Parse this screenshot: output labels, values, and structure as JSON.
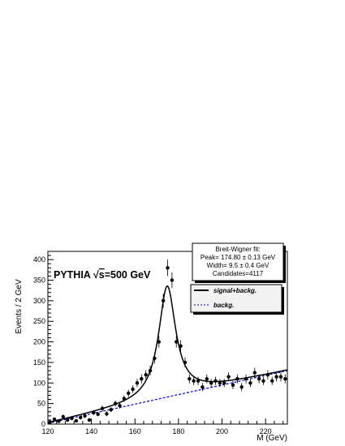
{
  "chart_data": {
    "type": "scatter",
    "xlabel": "M (GeV)",
    "ylabel": "Events / 2 GeV",
    "xlim": [
      120,
      230
    ],
    "ylim": [
      0,
      420
    ],
    "x_ticks": [
      120,
      140,
      160,
      180,
      200,
      220
    ],
    "y_ticks": [
      0,
      50,
      100,
      150,
      200,
      250,
      300,
      350,
      400
    ],
    "grid": false,
    "annotation": {
      "prefix": "PYTHIA ",
      "sqrt_symbol": "√",
      "sqrt_arg": "s",
      "suffix": "=500 GeV"
    },
    "fit_box": {
      "title": "Breit-Wigner fit:",
      "peak": "Peak= 174.80 ± 0.13 GeV",
      "width": "Width= 9.5 ± 0.4 GeV",
      "candidates": "Candidates=4117"
    },
    "legend": {
      "placement": "right",
      "entries": [
        {
          "label": "signal+backg.",
          "style": "solid",
          "color": "#000000"
        },
        {
          "label": "backg.",
          "style": "dashed",
          "color": "#0000cc"
        }
      ]
    },
    "series": [
      {
        "kind": "points",
        "color": "#000000",
        "x": [
          121,
          123,
          125,
          127,
          129,
          131,
          133,
          135,
          137,
          139,
          141,
          143,
          145,
          147,
          149,
          151,
          153,
          155,
          157,
          159,
          161,
          163,
          165,
          167,
          169,
          171,
          173,
          175,
          177,
          179,
          181,
          183,
          185,
          187,
          189,
          191,
          193,
          195,
          197,
          199,
          201,
          203,
          205,
          207,
          209,
          211,
          213,
          215,
          217,
          219,
          221,
          223,
          225,
          227,
          229
        ],
        "y": [
          5,
          12,
          7,
          18,
          10,
          14,
          8,
          16,
          20,
          10,
          28,
          24,
          38,
          25,
          35,
          50,
          45,
          62,
          75,
          85,
          100,
          110,
          120,
          130,
          160,
          200,
          300,
          380,
          350,
          200,
          190,
          150,
          110,
          105,
          105,
          90,
          110,
          100,
          105,
          100,
          100,
          115,
          95,
          110,
          90,
          110,
          100,
          125,
          110,
          105,
          120,
          105,
          115,
          115,
          110
        ],
        "err": [
          3,
          4,
          3,
          5,
          4,
          4,
          3,
          4,
          5,
          4,
          6,
          5,
          7,
          6,
          6,
          7,
          7,
          8,
          9,
          9,
          10,
          11,
          11,
          12,
          13,
          14,
          17,
          20,
          19,
          14,
          14,
          12,
          11,
          10,
          10,
          10,
          11,
          10,
          10,
          10,
          10,
          11,
          10,
          11,
          10,
          11,
          10,
          12,
          11,
          10,
          11,
          10,
          11,
          11,
          11
        ]
      },
      {
        "kind": "fit",
        "name": "signal+backg.",
        "color": "#000000",
        "style": "solid",
        "peak": 174.8,
        "width": 9.5,
        "amplitude": 270
      },
      {
        "kind": "background",
        "name": "backg.",
        "color": "#0000cc",
        "style": "dashed",
        "x": [
          120,
          230
        ],
        "y": [
          2,
          130
        ]
      }
    ]
  }
}
